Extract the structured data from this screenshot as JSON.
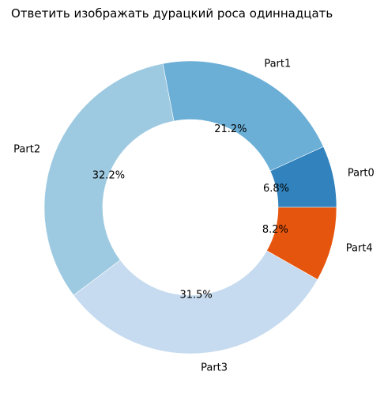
{
  "chart_data": {
    "type": "pie",
    "donut": true,
    "title": "Ответить изображать дурацкий роса одиннадцать",
    "categories": [
      "Part0",
      "Part1",
      "Part2",
      "Part3",
      "Part4"
    ],
    "values": [
      6.8,
      21.2,
      32.2,
      31.5,
      8.2
    ],
    "value_labels": [
      "6.8%",
      "21.2%",
      "32.2%",
      "31.5%",
      "8.2%"
    ],
    "colors": [
      "#3182bd",
      "#6baed6",
      "#9ecae1",
      "#c6dbef",
      "#e6550d"
    ],
    "start_angle_deg": 0,
    "direction": "counterclockwise"
  }
}
